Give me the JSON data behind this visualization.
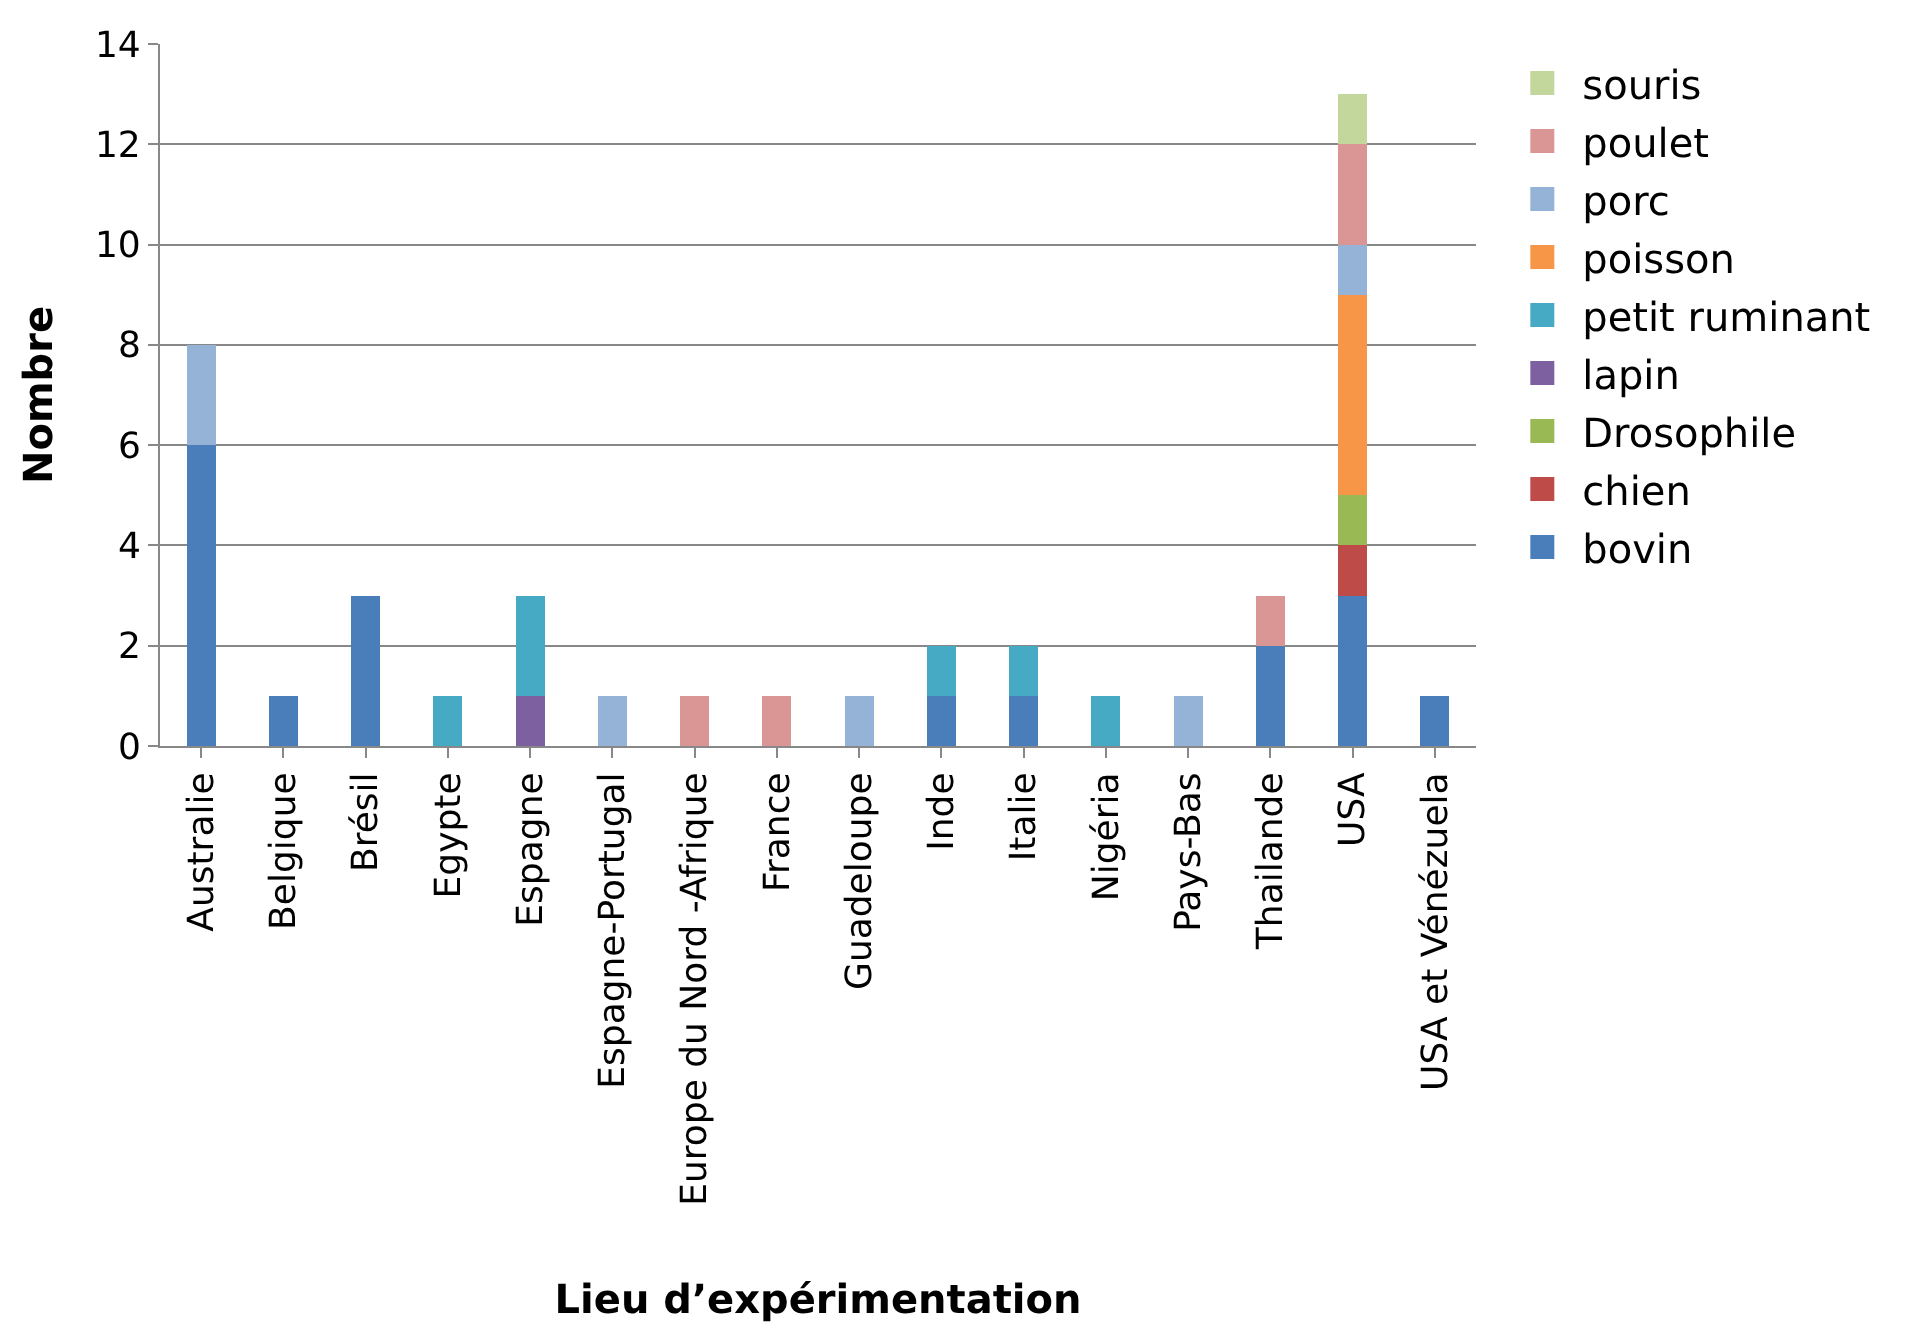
{
  "chart_data": {
    "type": "bar",
    "stacked": true,
    "xlabel": "Lieu d’expérimentation",
    "ylabel": "Nombre",
    "categories": [
      "Australie",
      "Belgique",
      "Brésil",
      "Egypte",
      "Espagne",
      "Espagne-Portugal",
      "Europe du Nord -Afrique",
      "France",
      "Guadeloupe",
      "Inde",
      "Italie",
      "Nigéria",
      "Pays-Bas",
      "Thailande",
      "USA",
      "USA et Vénézuela"
    ],
    "series": [
      {
        "name": "bovin",
        "color": "#4a7ebb",
        "values": [
          6,
          1,
          3,
          null,
          null,
          null,
          null,
          null,
          null,
          1,
          1,
          null,
          null,
          2,
          3,
          1
        ]
      },
      {
        "name": "chien",
        "color": "#be4b48",
        "values": [
          null,
          null,
          null,
          null,
          null,
          null,
          null,
          null,
          null,
          null,
          null,
          null,
          null,
          null,
          1,
          null
        ]
      },
      {
        "name": "Drosophile",
        "color": "#98b954",
        "values": [
          null,
          null,
          null,
          null,
          null,
          null,
          null,
          null,
          null,
          null,
          null,
          null,
          null,
          null,
          1,
          null
        ]
      },
      {
        "name": "lapin",
        "color": "#7d60a0",
        "values": [
          null,
          null,
          null,
          null,
          1,
          null,
          null,
          null,
          null,
          null,
          null,
          null,
          null,
          null,
          null,
          null
        ]
      },
      {
        "name": "petit ruminant",
        "color": "#46aac5",
        "values": [
          null,
          null,
          null,
          1,
          2,
          null,
          null,
          null,
          null,
          1,
          1,
          1,
          null,
          null,
          null,
          null
        ]
      },
      {
        "name": "poisson",
        "color": "#f79646",
        "values": [
          null,
          null,
          null,
          null,
          null,
          null,
          null,
          null,
          null,
          null,
          null,
          null,
          null,
          null,
          4,
          null
        ]
      },
      {
        "name": "porc",
        "color": "#95b3d7",
        "values": [
          2,
          null,
          null,
          null,
          null,
          1,
          null,
          null,
          1,
          null,
          null,
          null,
          1,
          null,
          1,
          null
        ]
      },
      {
        "name": "poulet",
        "color": "#d99694",
        "values": [
          null,
          null,
          null,
          null,
          null,
          null,
          1,
          1,
          null,
          null,
          null,
          null,
          null,
          1,
          2,
          null
        ]
      },
      {
        "name": "souris",
        "color": "#c3d69b",
        "values": [
          null,
          null,
          null,
          null,
          null,
          null,
          null,
          null,
          null,
          null,
          null,
          null,
          null,
          null,
          1,
          null
        ]
      }
    ],
    "ylim": [
      0,
      14
    ],
    "yticks": [
      0,
      2,
      4,
      6,
      8,
      10,
      12,
      14
    ],
    "grid": "y",
    "legend": "right"
  }
}
